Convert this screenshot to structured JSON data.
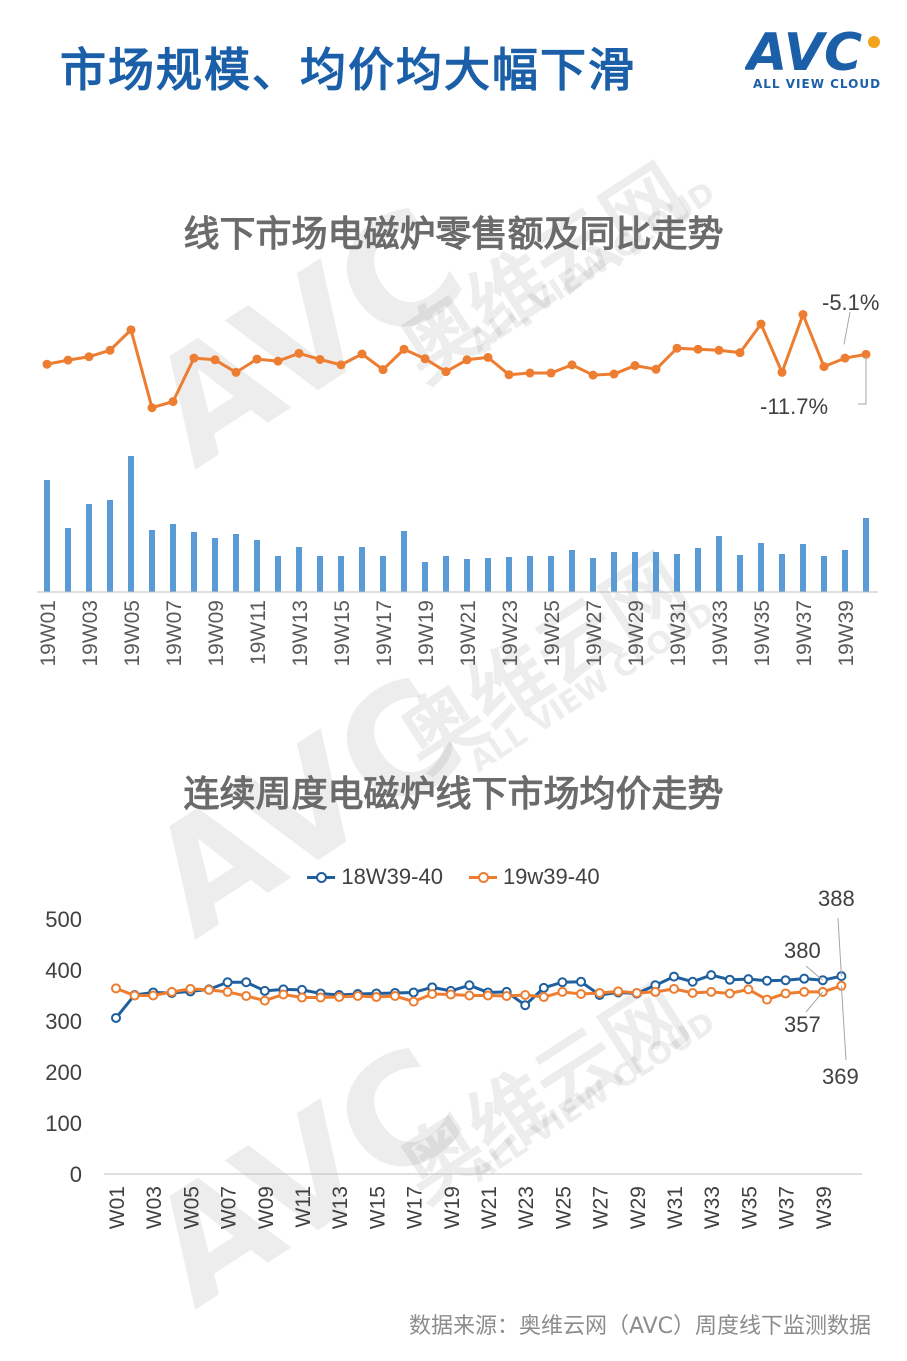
{
  "header": {
    "title": "市场规模、均价均大幅下滑",
    "logo_text": "AVC",
    "logo_sub": "ALL VIEW CLOUD",
    "accent_color": "#1a5fa8",
    "logo_dot_color": "#f3a21c"
  },
  "watermark": {
    "brand": "AVC",
    "cn": "奥维云网",
    "en": "ALL VIEW CLOUD"
  },
  "source": "数据来源：奥维云网（AVC）周度线下监测数据",
  "chart_data": [
    {
      "type": "bar",
      "title": "线下市场电磁炉零售额及同比走势",
      "categories": [
        "19W01",
        "19W02",
        "19W03",
        "19W04",
        "19W05",
        "19W06",
        "19W07",
        "19W08",
        "19W09",
        "19W10",
        "19W11",
        "19W12",
        "19W13",
        "19W14",
        "19W15",
        "19W16",
        "19W17",
        "19W18",
        "19W19",
        "19W20",
        "19W21",
        "19W22",
        "19W23",
        "19W24",
        "19W25",
        "19W26",
        "19W27",
        "19W28",
        "19W29",
        "19W30",
        "19W31",
        "19W32",
        "19W33",
        "19W34",
        "19W35",
        "19W36",
        "19W37",
        "19W38",
        "19W39",
        "19W40"
      ],
      "tick_labels": [
        "19W01",
        "19W03",
        "19W05",
        "19W07",
        "19W09",
        "19W11",
        "19W13",
        "19W15",
        "19W17",
        "19W19",
        "19W21",
        "19W23",
        "19W25",
        "19W27",
        "19W29",
        "19W31",
        "19W33",
        "19W35",
        "19W37",
        "19W39"
      ],
      "bar_series": {
        "name": "零售额",
        "color": "#5b9bd5",
        "values": [
          112,
          64,
          88,
          92,
          136,
          62,
          68,
          60,
          54,
          58,
          52,
          36,
          45,
          36,
          36,
          45,
          36,
          61,
          30,
          36,
          33,
          34,
          35,
          36,
          36,
          42,
          34,
          40,
          40,
          40,
          38,
          44,
          56,
          37,
          49,
          38,
          48,
          36,
          42,
          74
        ]
      },
      "line_series": {
        "name": "同比",
        "color": "#ed7d31",
        "values": [
          -8.0,
          -6.8,
          -5.8,
          -3.9,
          2.1,
          -20.8,
          -19.0,
          -6.2,
          -6.7,
          -10.4,
          -6.5,
          -7.1,
          -4.8,
          -6.6,
          -8.2,
          -5.0,
          -9.6,
          -3.6,
          -6.4,
          -10.2,
          -6.7,
          -6.0,
          -11.1,
          -10.6,
          -10.6,
          -8.2,
          -11.2,
          -10.9,
          -8.4,
          -9.5,
          -3.3,
          -3.6,
          -3.9,
          -4.6,
          3.8,
          -10.4,
          6.6,
          -8.7,
          -6.2,
          -5.1
        ]
      },
      "annotations": [
        "-5.1%",
        "-11.7%"
      ]
    },
    {
      "type": "line",
      "title": "连续周度电磁炉线下市场均价走势",
      "categories": [
        "W01",
        "W02",
        "W03",
        "W04",
        "W05",
        "W06",
        "W07",
        "W08",
        "W09",
        "W10",
        "W11",
        "W12",
        "W13",
        "W14",
        "W15",
        "W16",
        "W17",
        "W18",
        "W19",
        "W20",
        "W21",
        "W22",
        "W23",
        "W24",
        "W25",
        "W26",
        "W27",
        "W28",
        "W29",
        "W30",
        "W31",
        "W32",
        "W33",
        "W34",
        "W35",
        "W36",
        "W37",
        "W38",
        "W39",
        "W40"
      ],
      "tick_labels": [
        "W01",
        "W03",
        "W05",
        "W07",
        "W09",
        "W11",
        "W13",
        "W15",
        "W17",
        "W19",
        "W21",
        "W23",
        "W25",
        "W27",
        "W29",
        "W31",
        "W33",
        "W35",
        "W37",
        "W39"
      ],
      "ylim": [
        0,
        500
      ],
      "yticks": [
        "0",
        "100",
        "200",
        "300",
        "400",
        "500"
      ],
      "series": [
        {
          "name": "18W39-40",
          "color": "#1f5f9e",
          "values": [
            306,
            351,
            356,
            355,
            358,
            362,
            376,
            376,
            359,
            362,
            361,
            354,
            351,
            353,
            354,
            355,
            356,
            366,
            359,
            370,
            356,
            357,
            331,
            365,
            376,
            377,
            351,
            356,
            354,
            370,
            387,
            377,
            390,
            381,
            382,
            379,
            380,
            383,
            380,
            388
          ]
        },
        {
          "name": "19w39-40",
          "color": "#ed7d31",
          "values": [
            364,
            350,
            350,
            357,
            363,
            361,
            357,
            349,
            340,
            352,
            346,
            346,
            347,
            349,
            347,
            349,
            338,
            353,
            352,
            350,
            350,
            349,
            351,
            347,
            357,
            353,
            355,
            358,
            355,
            357,
            363,
            355,
            357,
            354,
            362,
            342,
            354,
            357,
            357,
            369
          ]
        }
      ],
      "data_labels": [
        "388",
        "380",
        "357",
        "369"
      ]
    }
  ]
}
